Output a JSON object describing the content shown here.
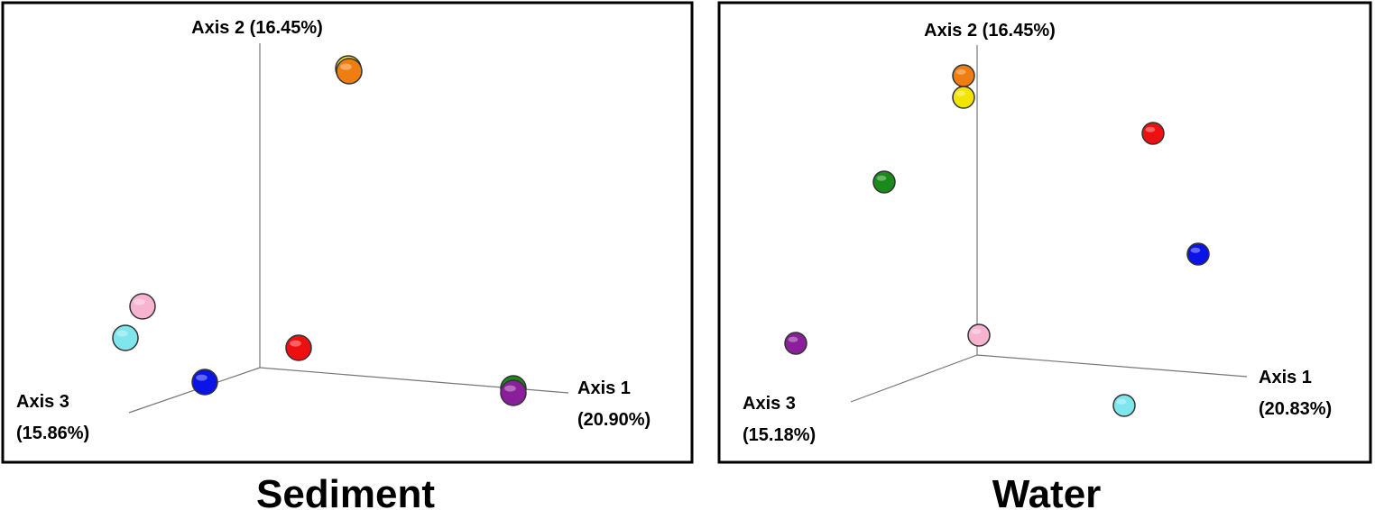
{
  "panels": [
    {
      "title": "Sediment",
      "axis2": "Axis 2 (16.45%)",
      "axis1": [
        "Axis 1",
        "(20.90%)"
      ],
      "axis3": [
        "Axis 3",
        "(15.86%)"
      ],
      "points": [
        {
          "color": "#f2e600"
        },
        {
          "color": "#f07d10"
        },
        {
          "color": "#f7b3cf"
        },
        {
          "color": "#7fe6ee"
        },
        {
          "color": "#0a14e6"
        },
        {
          "color": "#ee1010"
        },
        {
          "color": "#1a8a1a"
        },
        {
          "color": "#8a1f9a"
        }
      ]
    },
    {
      "title": "Water",
      "axis2": "Axis 2 (16.45%)",
      "axis1": [
        "Axis 1",
        "(20.83%)"
      ],
      "axis3": [
        "Axis 3",
        "(15.18%)"
      ],
      "points": [
        {
          "color": "#f07d10"
        },
        {
          "color": "#f2e600"
        },
        {
          "color": "#ee1010"
        },
        {
          "color": "#1a8a1a"
        },
        {
          "color": "#0a14e6"
        },
        {
          "color": "#8a1f9a"
        },
        {
          "color": "#f7b3cf"
        },
        {
          "color": "#7fe6ee"
        }
      ]
    }
  ]
}
